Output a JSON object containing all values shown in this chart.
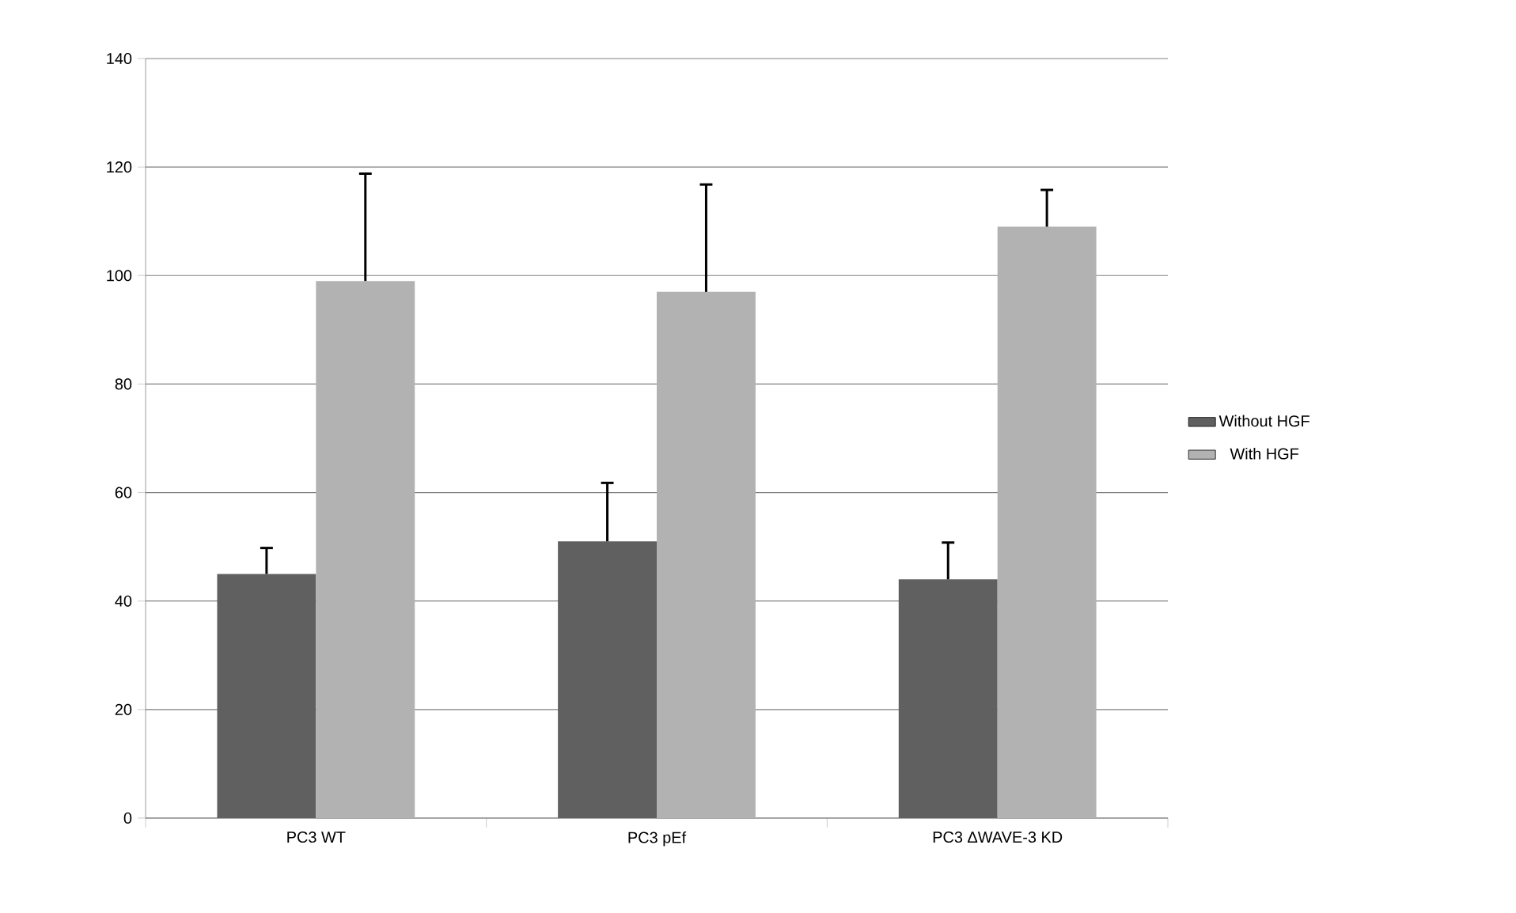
{
  "chart_data": {
    "type": "bar",
    "categories": [
      "PC3 WT",
      "PC3 pEf",
      "PC3 ΔWAVE-3 KD"
    ],
    "series": [
      {
        "name": "Without HGF",
        "color": "#606060",
        "values": [
          45,
          51,
          44
        ],
        "errors": [
          [
            45,
            50
          ],
          [
            51,
            62
          ],
          [
            44,
            51
          ]
        ]
      },
      {
        "name": "With HGF",
        "color": "#b2b2b2",
        "values": [
          99,
          97,
          109
        ],
        "errors": [
          [
            99,
            119
          ],
          [
            97,
            117
          ],
          [
            109,
            116
          ]
        ]
      }
    ],
    "ylim": [
      0,
      140
    ],
    "yticks": [
      0,
      20,
      40,
      60,
      80,
      100,
      120,
      140
    ],
    "grid": "y",
    "legend": "right"
  }
}
